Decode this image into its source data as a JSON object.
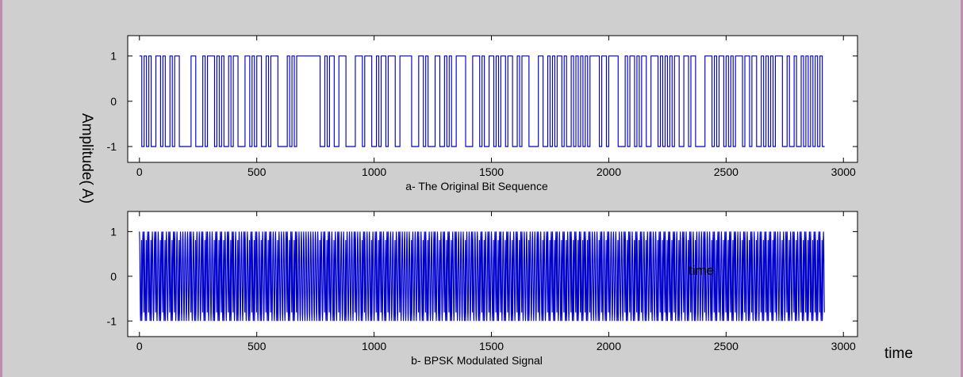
{
  "colors": {
    "signal": "#0000cc",
    "figure_bg": "#cfcfcf",
    "axes_bg": "#ffffff",
    "frame_border": "#c48bb0"
  },
  "ylabel": "Amplitude( A)",
  "xlabel": "time",
  "overlay_label": "time",
  "chart_data": [
    {
      "type": "line",
      "title": "a- The Original Bit Sequence",
      "xlim": [
        -50,
        3060
      ],
      "ylim": [
        -1.35,
        1.45
      ],
      "xticks": [
        "0",
        "500",
        "1000",
        "1500",
        "2000",
        "2500",
        "3000"
      ],
      "xtick_values": [
        0,
        500,
        1000,
        1500,
        2000,
        2500,
        3000
      ],
      "yticks": [
        "-1",
        "0",
        "1"
      ],
      "ytick_values": [
        -1,
        0,
        1
      ],
      "samples_per_bit": 10,
      "bits": [
        1,
        0,
        1,
        0,
        1,
        0,
        0,
        1,
        1,
        0,
        1,
        0,
        0,
        1,
        0,
        1,
        1,
        0,
        0,
        0,
        0,
        0,
        1,
        1,
        0,
        0,
        0,
        1,
        0,
        1,
        1,
        1,
        0,
        1,
        0,
        1,
        0,
        0,
        1,
        0,
        1,
        1,
        0,
        0,
        0,
        1,
        1,
        0,
        1,
        0,
        1,
        1,
        0,
        0,
        1,
        0,
        1,
        1,
        1,
        0,
        0,
        0,
        0,
        1,
        0,
        1,
        0,
        1,
        1,
        1,
        1,
        1,
        1,
        1,
        1,
        1,
        1,
        0,
        0,
        1,
        0,
        1,
        1,
        0,
        0,
        1,
        1,
        1,
        0,
        0,
        0,
        0,
        1,
        1,
        1,
        0,
        1,
        1,
        1,
        0,
        0,
        1,
        0,
        1,
        1,
        0,
        1,
        1,
        1,
        0,
        0,
        1,
        1,
        1,
        1,
        1,
        0,
        0,
        0,
        1,
        1,
        0,
        1,
        0,
        0,
        0,
        1,
        1,
        0,
        0,
        1,
        0,
        1,
        0,
        0,
        1,
        1,
        1,
        1,
        0,
        0,
        0,
        1,
        1,
        1,
        0,
        1,
        0,
        0,
        1,
        1,
        0,
        1,
        0,
        1,
        1,
        0,
        1,
        1,
        0,
        0,
        1,
        0,
        1,
        1,
        1,
        0,
        0,
        0,
        0,
        1,
        1,
        0,
        0,
        1,
        0,
        1,
        0,
        1,
        1,
        0,
        1,
        0,
        0,
        1,
        0,
        1,
        0,
        1,
        0,
        1,
        0,
        1,
        1,
        1,
        1,
        0,
        1,
        1,
        0,
        1,
        1,
        1,
        1,
        0,
        0,
        0,
        1,
        0,
        1,
        1,
        0,
        1,
        0,
        1,
        1,
        0,
        0,
        1,
        1,
        1,
        0,
        1,
        0,
        1,
        0,
        1,
        0,
        1,
        1,
        0,
        0,
        1,
        1,
        0,
        1,
        1,
        0,
        0,
        0,
        0,
        1,
        1,
        1,
        0,
        1,
        0,
        1,
        1,
        0,
        1,
        0,
        1,
        0,
        1,
        1,
        1,
        0,
        1,
        1,
        0,
        1,
        1,
        0,
        0,
        1,
        0,
        1,
        0,
        1,
        0,
        1,
        1,
        1,
        0,
        0,
        1,
        0,
        0,
        1,
        0,
        0,
        1,
        0,
        1,
        0,
        1,
        0,
        1,
        0,
        1,
        0
      ]
    },
    {
      "type": "line",
      "title": "b- BPSK Modulated Signal",
      "xlim": [
        -50,
        3060
      ],
      "ylim": [
        -1.35,
        1.45
      ],
      "xticks": [
        "0",
        "500",
        "1000",
        "1500",
        "2000",
        "2500",
        "3000"
      ],
      "xtick_values": [
        0,
        500,
        1000,
        1500,
        2000,
        2500,
        3000
      ],
      "yticks": [
        "-1",
        "0",
        "1"
      ],
      "ytick_values": [
        -1,
        0,
        1
      ],
      "modulation": "BPSK: cos(2π·t/10) multiplied by the bit polarity of plot a"
    }
  ]
}
